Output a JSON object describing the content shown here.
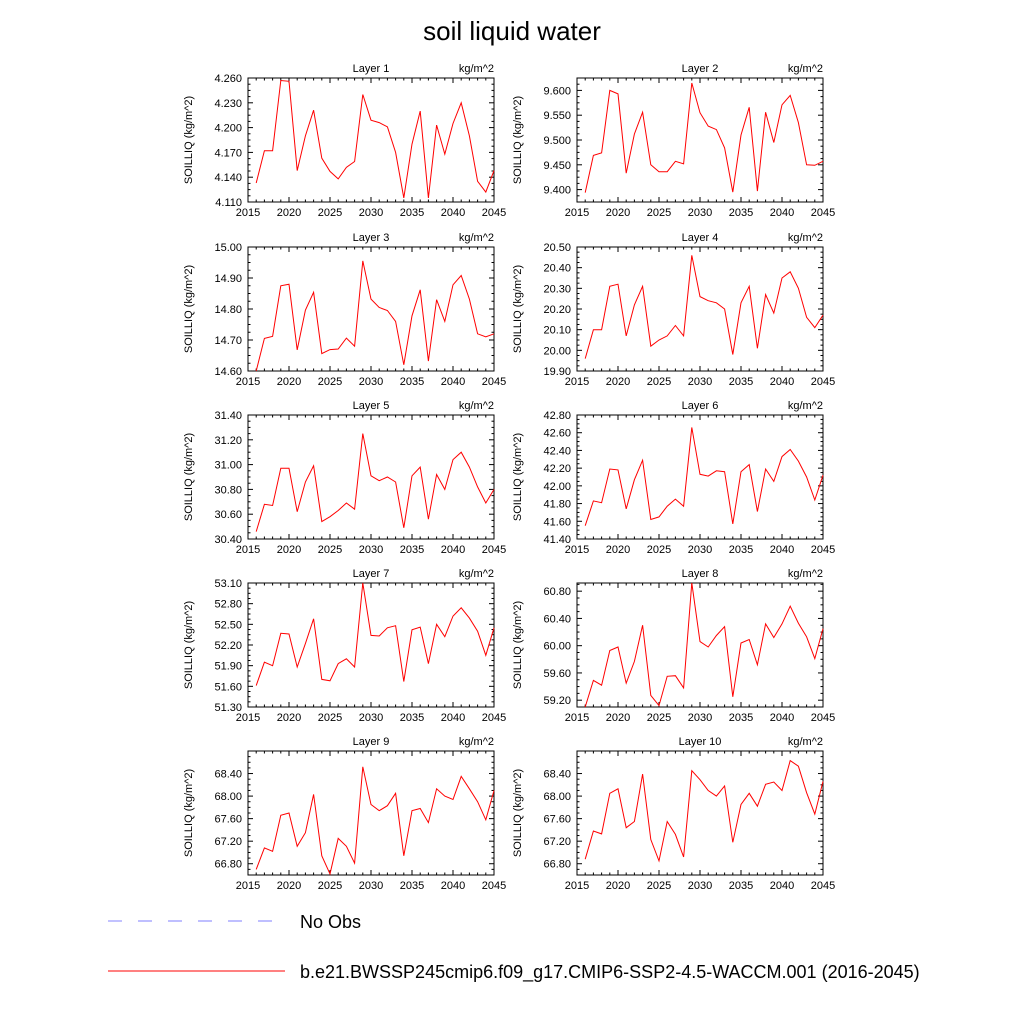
{
  "figure": {
    "title": "soil liquid water",
    "colors": {
      "model": "#ff0000",
      "obs": "#9999ff",
      "axes": "#000000"
    }
  },
  "legend": {
    "items": [
      {
        "label": "No Obs",
        "style": "dashed",
        "color": "#9999ff"
      },
      {
        "label": "b.e21.BWSSP245cmip6.f09_g17.CMIP6-SSP2-4.5-WACCM.001 (2016-2045)",
        "style": "solid",
        "color": "#ff0000"
      }
    ]
  },
  "chart_data": [
    {
      "type": "line",
      "title": "Layer 1",
      "units": "kg/m^2",
      "ylabel": "SOILLIQ  (kg/m^2)",
      "xlim": [
        2015,
        2045
      ],
      "xticks": [
        2015,
        2020,
        2025,
        2030,
        2035,
        2040,
        2045
      ],
      "ylim": [
        4.11,
        4.26
      ],
      "yticks": [
        "4.110",
        "4.140",
        "4.170",
        "4.200",
        "4.230",
        "4.260"
      ],
      "x": [
        2016,
        2017,
        2018,
        2019,
        2020,
        2021,
        2022,
        2023,
        2024,
        2025,
        2026,
        2027,
        2028,
        2029,
        2030,
        2031,
        2032,
        2033,
        2034,
        2035,
        2036,
        2037,
        2038,
        2039,
        2040,
        2041,
        2042,
        2043,
        2044,
        2045
      ],
      "values": [
        4.133,
        4.172,
        4.172,
        4.257,
        4.256,
        4.148,
        4.19,
        4.221,
        4.163,
        4.147,
        4.138,
        4.152,
        4.159,
        4.24,
        4.209,
        4.206,
        4.201,
        4.17,
        4.115,
        4.18,
        4.22,
        4.115,
        4.203,
        4.168,
        4.205,
        4.23,
        4.19,
        4.135,
        4.122,
        4.148
      ]
    },
    {
      "type": "line",
      "title": "Layer 2",
      "units": "kg/m^2",
      "ylabel": "SOILLIQ  (kg/m^2)",
      "xlim": [
        2015,
        2045
      ],
      "xticks": [
        2015,
        2020,
        2025,
        2030,
        2035,
        2040,
        2045
      ],
      "ylim": [
        9.375,
        9.625
      ],
      "yticks": [
        "9.400",
        "9.450",
        "9.500",
        "9.550",
        "9.600"
      ],
      "x": [
        2016,
        2017,
        2018,
        2019,
        2020,
        2021,
        2022,
        2023,
        2024,
        2025,
        2026,
        2027,
        2028,
        2029,
        2030,
        2031,
        2032,
        2033,
        2034,
        2035,
        2036,
        2037,
        2038,
        2039,
        2040,
        2041,
        2042,
        2043,
        2044,
        2045
      ],
      "values": [
        9.394,
        9.469,
        9.474,
        9.6,
        9.593,
        9.433,
        9.512,
        9.556,
        9.45,
        9.436,
        9.436,
        9.457,
        9.452,
        9.615,
        9.555,
        9.528,
        9.521,
        9.484,
        9.395,
        9.51,
        9.566,
        9.397,
        9.556,
        9.495,
        9.571,
        9.59,
        9.535,
        9.45,
        9.449,
        9.457
      ]
    },
    {
      "type": "line",
      "title": "Layer 3",
      "units": "kg/m^2",
      "ylabel": "SOILLIQ  (kg/m^2)",
      "xlim": [
        2015,
        2045
      ],
      "xticks": [
        2015,
        2020,
        2025,
        2030,
        2035,
        2040,
        2045
      ],
      "ylim": [
        14.6,
        15.0
      ],
      "yticks": [
        "14.60",
        "14.70",
        "14.80",
        "14.90",
        "15.00"
      ],
      "x": [
        2016,
        2017,
        2018,
        2019,
        2020,
        2021,
        2022,
        2023,
        2024,
        2025,
        2026,
        2027,
        2028,
        2029,
        2030,
        2031,
        2032,
        2033,
        2034,
        2035,
        2036,
        2037,
        2038,
        2039,
        2040,
        2041,
        2042,
        2043,
        2044,
        2045
      ],
      "values": [
        14.6,
        14.705,
        14.712,
        14.875,
        14.88,
        14.668,
        14.796,
        14.854,
        14.656,
        14.669,
        14.671,
        14.706,
        14.68,
        14.955,
        14.832,
        14.805,
        14.795,
        14.76,
        14.62,
        14.778,
        14.862,
        14.632,
        14.83,
        14.76,
        14.878,
        14.908,
        14.832,
        14.72,
        14.71,
        14.72
      ]
    },
    {
      "type": "line",
      "title": "Layer 4",
      "units": "kg/m^2",
      "ylabel": "SOILLIQ  (kg/m^2)",
      "xlim": [
        2015,
        2045
      ],
      "xticks": [
        2015,
        2020,
        2025,
        2030,
        2035,
        2040,
        2045
      ],
      "ylim": [
        19.9,
        20.5
      ],
      "yticks": [
        "19.90",
        "20.00",
        "20.10",
        "20.20",
        "20.30",
        "20.40",
        "20.50"
      ],
      "x": [
        2016,
        2017,
        2018,
        2019,
        2020,
        2021,
        2022,
        2023,
        2024,
        2025,
        2026,
        2027,
        2028,
        2029,
        2030,
        2031,
        2032,
        2033,
        2034,
        2035,
        2036,
        2037,
        2038,
        2039,
        2040,
        2041,
        2042,
        2043,
        2044,
        2045
      ],
      "values": [
        19.96,
        20.1,
        20.1,
        20.31,
        20.32,
        20.07,
        20.22,
        20.31,
        20.02,
        20.05,
        20.07,
        20.12,
        20.07,
        20.46,
        20.26,
        20.24,
        20.23,
        20.2,
        19.98,
        20.23,
        20.31,
        20.01,
        20.27,
        20.18,
        20.35,
        20.38,
        20.3,
        20.16,
        20.11,
        20.17
      ]
    },
    {
      "type": "line",
      "title": "Layer 5",
      "units": "kg/m^2",
      "ylabel": "SOILLIQ  (kg/m^2)",
      "xlim": [
        2015,
        2045
      ],
      "xticks": [
        2015,
        2020,
        2025,
        2030,
        2035,
        2040,
        2045
      ],
      "ylim": [
        30.4,
        31.4
      ],
      "yticks": [
        "30.40",
        "30.60",
        "30.80",
        "31.00",
        "31.20",
        "31.40"
      ],
      "x": [
        2016,
        2017,
        2018,
        2019,
        2020,
        2021,
        2022,
        2023,
        2024,
        2025,
        2026,
        2027,
        2028,
        2029,
        2030,
        2031,
        2032,
        2033,
        2034,
        2035,
        2036,
        2037,
        2038,
        2039,
        2040,
        2041,
        2042,
        2043,
        2044,
        2045
      ],
      "values": [
        30.46,
        30.68,
        30.67,
        30.97,
        30.97,
        30.62,
        30.86,
        30.99,
        30.54,
        30.58,
        30.63,
        30.69,
        30.64,
        31.25,
        30.91,
        30.87,
        30.9,
        30.86,
        30.49,
        30.91,
        30.98,
        30.56,
        30.92,
        30.8,
        31.04,
        31.1,
        30.98,
        30.82,
        30.69,
        30.8
      ]
    },
    {
      "type": "line",
      "title": "Layer 6",
      "units": "kg/m^2",
      "ylabel": "SOILLIQ  (kg/m^2)",
      "xlim": [
        2015,
        2045
      ],
      "xticks": [
        2015,
        2020,
        2025,
        2030,
        2035,
        2040,
        2045
      ],
      "ylim": [
        41.4,
        42.8
      ],
      "yticks": [
        "41.40",
        "41.60",
        "41.80",
        "42.00",
        "42.20",
        "42.40",
        "42.60",
        "42.80"
      ],
      "x": [
        2016,
        2017,
        2018,
        2019,
        2020,
        2021,
        2022,
        2023,
        2024,
        2025,
        2026,
        2027,
        2028,
        2029,
        2030,
        2031,
        2032,
        2033,
        2034,
        2035,
        2036,
        2037,
        2038,
        2039,
        2040,
        2041,
        2042,
        2043,
        2044,
        2045
      ],
      "values": [
        41.55,
        41.83,
        41.81,
        42.19,
        42.18,
        41.74,
        42.07,
        42.29,
        41.62,
        41.65,
        41.77,
        41.85,
        41.77,
        42.66,
        42.13,
        42.11,
        42.17,
        42.16,
        41.57,
        42.16,
        42.24,
        41.71,
        42.19,
        42.05,
        42.33,
        42.41,
        42.28,
        42.1,
        41.84,
        42.12
      ]
    },
    {
      "type": "line",
      "title": "Layer 7",
      "units": "kg/m^2",
      "ylabel": "SOILLIQ  (kg/m^2)",
      "xlim": [
        2015,
        2045
      ],
      "xticks": [
        2015,
        2020,
        2025,
        2030,
        2035,
        2040,
        2045
      ],
      "ylim": [
        51.3,
        53.1
      ],
      "yticks": [
        "51.30",
        "51.60",
        "51.90",
        "52.20",
        "52.50",
        "52.80",
        "53.10"
      ],
      "x": [
        2016,
        2017,
        2018,
        2019,
        2020,
        2021,
        2022,
        2023,
        2024,
        2025,
        2026,
        2027,
        2028,
        2029,
        2030,
        2031,
        2032,
        2033,
        2034,
        2035,
        2036,
        2037,
        2038,
        2039,
        2040,
        2041,
        2042,
        2043,
        2044,
        2045
      ],
      "values": [
        51.61,
        51.95,
        51.9,
        52.37,
        52.36,
        51.88,
        52.22,
        52.58,
        51.7,
        51.68,
        51.93,
        52.0,
        51.88,
        53.1,
        52.34,
        52.33,
        52.45,
        52.48,
        51.67,
        52.42,
        52.46,
        51.93,
        52.5,
        52.32,
        52.62,
        52.74,
        52.59,
        52.4,
        52.05,
        52.45
      ]
    },
    {
      "type": "line",
      "title": "Layer 8",
      "units": "kg/m^2",
      "ylabel": "SOILLIQ  (kg/m^2)",
      "xlim": [
        2015,
        2045
      ],
      "xticks": [
        2015,
        2020,
        2025,
        2030,
        2035,
        2040,
        2045
      ],
      "ylim": [
        59.1,
        60.92
      ],
      "yticks": [
        "59.20",
        "59.60",
        "60.00",
        "60.40",
        "60.80"
      ],
      "x": [
        2016,
        2017,
        2018,
        2019,
        2020,
        2021,
        2022,
        2023,
        2024,
        2025,
        2026,
        2027,
        2028,
        2029,
        2030,
        2031,
        2032,
        2033,
        2034,
        2035,
        2036,
        2037,
        2038,
        2039,
        2040,
        2041,
        2042,
        2043,
        2044,
        2045
      ],
      "values": [
        59.1,
        59.49,
        59.42,
        59.93,
        59.98,
        59.45,
        59.77,
        60.3,
        59.27,
        59.12,
        59.55,
        59.56,
        59.38,
        60.92,
        60.06,
        59.98,
        60.15,
        60.28,
        59.25,
        60.04,
        60.09,
        59.72,
        60.32,
        60.12,
        60.32,
        60.58,
        60.33,
        60.13,
        59.81,
        60.25
      ]
    },
    {
      "type": "line",
      "title": "Layer 9",
      "units": "kg/m^2",
      "ylabel": "SOILLIQ  (kg/m^2)",
      "xlim": [
        2015,
        2045
      ],
      "xticks": [
        2015,
        2020,
        2025,
        2030,
        2035,
        2040,
        2045
      ],
      "ylim": [
        66.6,
        68.8
      ],
      "yticks": [
        "66.80",
        "67.20",
        "67.60",
        "68.00",
        "68.40"
      ],
      "x": [
        2016,
        2017,
        2018,
        2019,
        2020,
        2021,
        2022,
        2023,
        2024,
        2025,
        2026,
        2027,
        2028,
        2029,
        2030,
        2031,
        2032,
        2033,
        2034,
        2035,
        2036,
        2037,
        2038,
        2039,
        2040,
        2041,
        2042,
        2043,
        2044,
        2045
      ],
      "values": [
        66.7,
        67.08,
        67.02,
        67.66,
        67.7,
        67.11,
        67.35,
        68.03,
        66.94,
        66.62,
        67.25,
        67.11,
        66.81,
        68.52,
        67.85,
        67.74,
        67.83,
        68.05,
        66.94,
        67.74,
        67.78,
        67.53,
        68.13,
        68.0,
        67.94,
        68.35,
        68.13,
        67.9,
        67.58,
        68.1
      ]
    },
    {
      "type": "line",
      "title": "Layer 10",
      "units": "kg/m^2",
      "ylabel": "SOILLIQ  (kg/m^2)",
      "xlim": [
        2015,
        2045
      ],
      "xticks": [
        2015,
        2020,
        2025,
        2030,
        2035,
        2040,
        2045
      ],
      "ylim": [
        66.6,
        68.8
      ],
      "yticks": [
        "66.80",
        "67.20",
        "67.60",
        "68.00",
        "68.40"
      ],
      "x": [
        2016,
        2017,
        2018,
        2019,
        2020,
        2021,
        2022,
        2023,
        2024,
        2025,
        2026,
        2027,
        2028,
        2029,
        2030,
        2031,
        2032,
        2033,
        2034,
        2035,
        2036,
        2037,
        2038,
        2039,
        2040,
        2041,
        2042,
        2043,
        2044,
        2045
      ],
      "values": [
        66.88,
        67.38,
        67.33,
        68.05,
        68.13,
        67.44,
        67.55,
        68.39,
        67.23,
        66.85,
        67.55,
        67.32,
        66.92,
        68.45,
        68.29,
        68.1,
        68.0,
        68.18,
        67.18,
        67.85,
        68.05,
        67.82,
        68.21,
        68.25,
        68.1,
        68.63,
        68.53,
        68.06,
        67.68,
        68.26
      ]
    }
  ]
}
